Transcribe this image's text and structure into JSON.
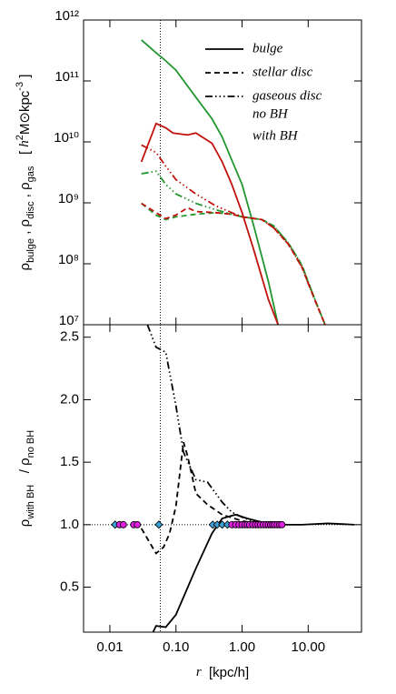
{
  "chart_data": [
    {
      "type": "line",
      "xlog": true,
      "ylog": true,
      "xlim": [
        0.004,
        64
      ],
      "ylim": [
        10000000.0,
        1000000000000.0
      ],
      "xticks": [
        0.01,
        0.1,
        1,
        10
      ],
      "yticks": [
        {
          "value": 10000000.0,
          "label": "10⁷"
        },
        {
          "value": 100000000.0,
          "label": "10⁸"
        },
        {
          "value": 1000000000.0,
          "label": "10⁹"
        },
        {
          "value": 10000000000.0,
          "label": "10¹⁰"
        },
        {
          "value": 100000000000.0,
          "label": "10¹¹"
        },
        {
          "value": 1000000000000.0,
          "label": "10¹²"
        }
      ],
      "ylabel": [
        {
          "text": "ρ"
        },
        {
          "text": "bulge",
          "shift": "sub"
        },
        {
          "text": " , ρ"
        },
        {
          "text": "disc",
          "shift": "sub"
        },
        {
          "text": " , ρ"
        },
        {
          "text": "gas",
          "shift": "sub"
        },
        {
          "text": "   [ "
        },
        {
          "text": "h",
          "style": "italic"
        },
        {
          "text": "2",
          "shift": "super"
        },
        {
          "text": "M⊙kpc"
        },
        {
          "text": "-3",
          "shift": "super"
        },
        {
          "text": " ]"
        }
      ],
      "vline": 0.058,
      "legend": {
        "styles": [
          {
            "label": "bulge",
            "dash": "solid"
          },
          {
            "label": "stellar disc",
            "dash": "dashed"
          },
          {
            "label": "gaseous disc",
            "dash": "dashdotdotdot"
          }
        ],
        "colors": [
          {
            "label": "no BH",
            "color": "#22962f"
          },
          {
            "label": "with BH",
            "color": "#c0120c"
          }
        ]
      },
      "series": [
        {
          "color": "#22962f",
          "dash": "solid",
          "x": [
            0.03,
            0.05,
            0.065,
            0.1,
            0.2,
            0.35,
            0.5,
            0.7,
            1.0,
            1.5,
            2.5,
            3.5
          ],
          "values": [
            470000000000.0,
            290000000000.0,
            230000000000.0,
            150000000000.0,
            54000000000.0,
            24000000000.0,
            12000000000.0,
            5000000000.0,
            2000000000.0,
            420000000.0,
            51000000.0,
            10000000.0
          ]
        },
        {
          "color": "#c0120c",
          "dash": "solid",
          "x": [
            0.03,
            0.05,
            0.07,
            0.09,
            0.15,
            0.2,
            0.35,
            0.5,
            0.7,
            1.0,
            1.5,
            2.5,
            3.5
          ],
          "values": [
            4700000000.0,
            20000000000.0,
            17000000000.0,
            14000000000.0,
            13000000000.0,
            14000000000.0,
            9500000000.0,
            4700000000.0,
            2000000000.0,
            690000000.0,
            170000000.0,
            26000000.0,
            10000000.0
          ]
        },
        {
          "color": "#22962f",
          "dash": "dashdotdotdot",
          "x": [
            0.03,
            0.05,
            0.07,
            0.1,
            0.2,
            0.4,
            0.7,
            1.0,
            2,
            3,
            5,
            8,
            12,
            18
          ],
          "values": [
            3000000000.0,
            3300000000.0,
            2000000000.0,
            1400000000.0,
            980000000.0,
            770000000.0,
            650000000.0,
            590000000.0,
            530000000.0,
            420000000.0,
            220000000.0,
            96000000.0,
            30000000.0,
            10000000.0
          ]
        },
        {
          "color": "#c0120c",
          "dash": "dashdotdotdot",
          "x": [
            0.03,
            0.05,
            0.07,
            0.1,
            0.2,
            0.4,
            0.7,
            1.0,
            2,
            3,
            5,
            8,
            12,
            18
          ],
          "values": [
            8900000000.0,
            6700000000.0,
            4000000000.0,
            2400000000.0,
            1400000000.0,
            890000000.0,
            690000000.0,
            590000000.0,
            530000000.0,
            390000000.0,
            210000000.0,
            89000000.0,
            29000000.0,
            10000000.0
          ]
        },
        {
          "color": "#22962f",
          "dash": "dashed",
          "x": [
            0.03,
            0.05,
            0.07,
            0.1,
            0.2,
            0.4,
            0.7,
            1.0,
            2,
            3,
            5,
            8,
            12,
            18
          ],
          "values": [
            980000000.0,
            630000000.0,
            530000000.0,
            590000000.0,
            650000000.0,
            690000000.0,
            650000000.0,
            590000000.0,
            530000000.0,
            420000000.0,
            220000000.0,
            96000000.0,
            30000000.0,
            10000000.0
          ]
        },
        {
          "color": "#c0120c",
          "dash": "dashed",
          "x": [
            0.03,
            0.05,
            0.07,
            0.1,
            0.15,
            0.2,
            0.4,
            0.7,
            1.0,
            2,
            3,
            5,
            8,
            12,
            18
          ],
          "values": [
            980000000.0,
            690000000.0,
            550000000.0,
            630000000.0,
            830000000.0,
            720000000.0,
            690000000.0,
            650000000.0,
            590000000.0,
            530000000.0,
            390000000.0,
            210000000.0,
            89000000.0,
            29000000.0,
            10000000.0
          ]
        }
      ]
    },
    {
      "type": "line",
      "xlog": true,
      "ylog": false,
      "xlim": [
        0.004,
        64
      ],
      "ylim": [
        0.14,
        2.6
      ],
      "xticks": [
        0.01,
        {
          "value": 0.1,
          "label": "0.10"
        },
        {
          "value": 1,
          "label": "1.00"
        },
        {
          "value": 10,
          "label": "10.00"
        }
      ],
      "yticks": [
        0.5,
        {
          "value": 1,
          "label": "1.0"
        },
        1.5,
        {
          "value": 2,
          "label": "2.0"
        },
        2.5
      ],
      "ylabel": [
        {
          "text": "ρ"
        },
        {
          "text": "with BH",
          "shift": "sub"
        },
        {
          "text": "   / ρ"
        },
        {
          "text": "no BH",
          "shift": "sub"
        }
      ],
      "xlabel": [
        {
          "text": "r",
          "style": "italic"
        },
        {
          "text": "  [kpc/h]"
        }
      ],
      "vline": 0.058,
      "hline": 1.0,
      "series": [
        {
          "color": "#000000",
          "dash": "solid",
          "x": [
            0.045,
            0.05,
            0.07,
            0.1,
            0.2,
            0.35,
            0.5,
            0.8,
            1.2,
            2,
            4,
            8,
            20,
            50
          ],
          "values": [
            0.14,
            0.19,
            0.18,
            0.28,
            0.65,
            0.93,
            1.05,
            1.08,
            1.05,
            1.02,
            1.0,
            1.0,
            1.01,
            1.0
          ]
        },
        {
          "color": "#000000",
          "dash": "dashed",
          "x": [
            0.03,
            0.05,
            0.065,
            0.08,
            0.1,
            0.13,
            0.15,
            0.2,
            0.3,
            0.5,
            1,
            2
          ],
          "values": [
            0.97,
            0.77,
            0.82,
            0.93,
            1.15,
            1.66,
            1.55,
            1.25,
            1.16,
            1.08,
            1.03,
            1.0
          ]
        },
        {
          "color": "#000000",
          "dash": "dashdotdotdot",
          "x": [
            0.037,
            0.05,
            0.07,
            0.1,
            0.13,
            0.2,
            0.3,
            0.5,
            0.7,
            1,
            2
          ],
          "values": [
            2.6,
            2.42,
            2.38,
            1.95,
            1.58,
            1.36,
            1.34,
            1.18,
            1.1,
            1.06,
            1.0
          ]
        },
        {
          "color": "#3aa0d8",
          "marker": "diamond",
          "x": [
            0.012,
            0.055,
            0.36,
            0.42,
            0.5,
            0.6
          ],
          "values": [
            1,
            1,
            1,
            1,
            1,
            1
          ]
        },
        {
          "color": "#e020e0",
          "marker": "circle",
          "x": [
            0.014,
            0.016,
            0.023,
            0.026,
            0.7,
            0.8,
            0.9,
            1.0,
            1.1,
            1.2,
            1.3,
            1.45,
            1.6,
            1.75,
            1.9,
            2.1,
            2.3,
            2.5,
            2.7,
            2.9,
            3.1,
            3.4,
            3.7,
            4.0
          ],
          "values": [
            1,
            1,
            1,
            1,
            1,
            1,
            1,
            1,
            1,
            1,
            1,
            1,
            1,
            1,
            1,
            1,
            1,
            1,
            1,
            1,
            1,
            1,
            1,
            1
          ]
        }
      ]
    }
  ]
}
